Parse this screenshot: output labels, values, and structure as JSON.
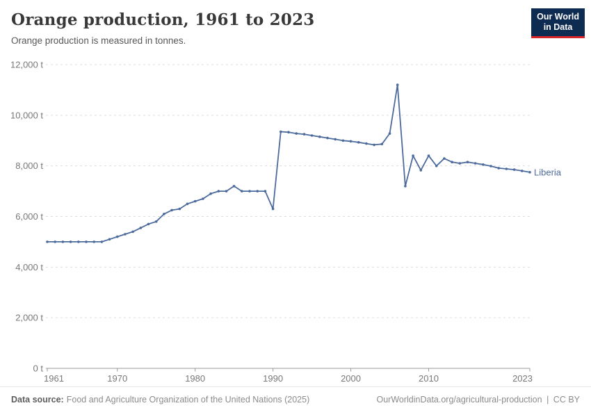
{
  "header": {
    "title": "Orange production, 1961 to 2023",
    "subtitle": "Orange production is measured in tonnes.",
    "logo": {
      "line1": "Our World",
      "line2": "in Data",
      "bg_color": "#0E2B52",
      "bar_color": "#D8262B",
      "text_color": "#ffffff"
    }
  },
  "chart_data": {
    "type": "line",
    "title": "Orange production, 1961 to 2023",
    "subtitle": "Orange production is measured in tonnes.",
    "xlabel": "",
    "ylabel": "",
    "xlim": [
      1961,
      2023
    ],
    "ylim": [
      0,
      12000
    ],
    "x_ticks": [
      1961,
      1970,
      1980,
      1990,
      2000,
      2010,
      2023
    ],
    "y_ticks": [
      0,
      2000,
      4000,
      6000,
      8000,
      10000,
      12000
    ],
    "y_tick_suffix": " t",
    "grid": "horizontal-dashed",
    "legend_position": "end-of-line-label",
    "grid_color": "#dcdcdc",
    "axis_color": "#9a9a9a",
    "tick_label_color": "#787878",
    "series": [
      {
        "name": "Liberia",
        "color": "#4C6A9C",
        "x": [
          1961,
          1962,
          1963,
          1964,
          1965,
          1966,
          1967,
          1968,
          1969,
          1970,
          1971,
          1972,
          1973,
          1974,
          1975,
          1976,
          1977,
          1978,
          1979,
          1980,
          1981,
          1982,
          1983,
          1984,
          1985,
          1986,
          1987,
          1988,
          1989,
          1990,
          1991,
          1992,
          1993,
          1994,
          1995,
          1996,
          1997,
          1998,
          1999,
          2000,
          2001,
          2002,
          2003,
          2004,
          2005,
          2006,
          2007,
          2008,
          2009,
          2010,
          2011,
          2012,
          2013,
          2014,
          2015,
          2016,
          2017,
          2018,
          2019,
          2020,
          2021,
          2022,
          2023
        ],
        "values": [
          5000,
          5000,
          5000,
          5000,
          5000,
          5000,
          5000,
          5000,
          5100,
          5200,
          5300,
          5400,
          5550,
          5700,
          5800,
          6100,
          6250,
          6300,
          6500,
          6600,
          6700,
          6900,
          7000,
          7000,
          7200,
          7000,
          7000,
          7000,
          7000,
          6300,
          9350,
          9330,
          9280,
          9250,
          9200,
          9150,
          9100,
          9050,
          9000,
          8970,
          8930,
          8880,
          8830,
          8860,
          9280,
          11200,
          7200,
          8400,
          7830,
          8400,
          8000,
          8290,
          8150,
          8100,
          8150,
          8100,
          8050,
          7990,
          7910,
          7880,
          7850,
          7800,
          7750
        ]
      }
    ]
  },
  "footer": {
    "datasource_label": "Data source:",
    "datasource": "Food and Agriculture Organization of the United Nations (2025)",
    "link": "OurWorldinData.org/agricultural-production",
    "separator": "|",
    "license": "CC BY"
  }
}
